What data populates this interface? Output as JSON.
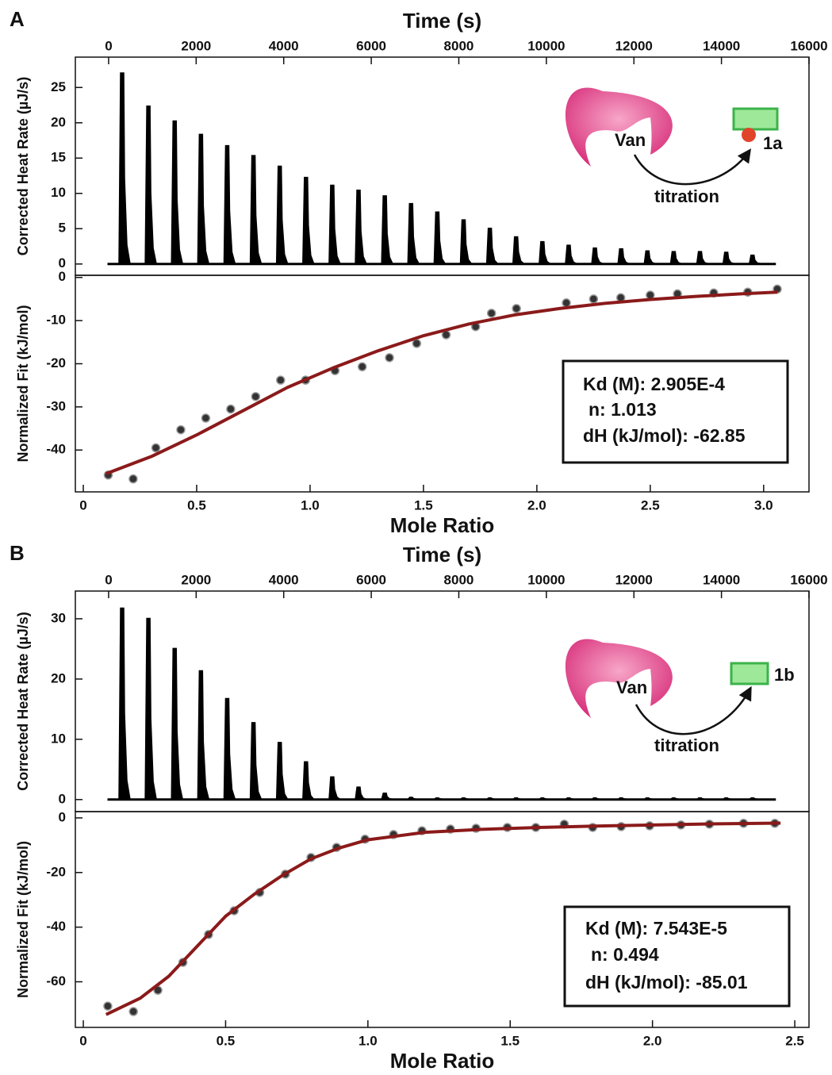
{
  "chart_data": [
    {
      "type": "peaks",
      "panel_label": "A",
      "xlabel": "Time (s)",
      "ylabel": "Corrected Heat Rate (µJ/s)",
      "xaxis": "top",
      "labels": [
        "Van",
        "titration",
        "1a"
      ],
      "x": [
        300,
        900,
        1500,
        2100,
        2700,
        3300,
        3900,
        4500,
        5100,
        5700,
        6300,
        6900,
        7500,
        8100,
        8700,
        9300,
        9900,
        10500,
        11100,
        11700,
        12300,
        12900,
        13500,
        14100,
        14700
      ],
      "values": [
        27,
        22.3,
        20.2,
        18.3,
        16.7,
        15.3,
        13.8,
        12.2,
        11.1,
        10.4,
        9.6,
        8.5,
        7.3,
        6.2,
        5,
        3.8,
        3.1,
        2.6,
        2.2,
        2.1,
        1.8,
        1.7,
        1.7,
        1.6,
        1.2
      ],
      "color": "#000000",
      "xlim": [
        -760,
        16000
      ],
      "xticks": [
        0,
        2000,
        4000,
        6000,
        8000,
        10000,
        12000,
        14000,
        16000
      ],
      "ylim": [
        -1.6,
        29.3
      ],
      "yticks": [
        0,
        5,
        10,
        15,
        20,
        25
      ]
    },
    {
      "type": "scatter",
      "xlabel": "Mole Ratio",
      "ylabel": "Normalized Fit (kJ/mol)",
      "xaxis": "bottom",
      "annotations": [
        "Kd (M): 2.905E-4",
        "n: 1.013",
        "dH (kJ/mol): -62.85"
      ],
      "series": [
        {
          "mode": "markers",
          "color": "#333333",
          "x": [
            0.11,
            0.22,
            0.32,
            0.43,
            0.54,
            0.65,
            0.76,
            0.87,
            0.98,
            1.11,
            1.23,
            1.35,
            1.47,
            1.6,
            1.73,
            1.8,
            1.91,
            2.13,
            2.25,
            2.37,
            2.5,
            2.62,
            2.78,
            2.93,
            3.06
          ],
          "values": [
            -45.8,
            -46.7,
            -39.5,
            -35.3,
            -32.6,
            -30.5,
            -27.6,
            -23.8,
            -23.8,
            -21.6,
            -20.7,
            -18.6,
            -15.3,
            -13.3,
            -11.4,
            -8.3,
            -7.2,
            -5.9,
            -5.0,
            -4.7,
            -4.1,
            -3.8,
            -3.6,
            -3.4,
            -2.7
          ]
        },
        {
          "mode": "line",
          "color": "#8b1a1a",
          "x": [
            0.1,
            0.3,
            0.5,
            0.7,
            0.9,
            1.1,
            1.3,
            1.5,
            1.7,
            1.9,
            2.1,
            2.3,
            2.5,
            2.7,
            2.9,
            3.06
          ],
          "values": [
            -45.5,
            -41.5,
            -36.5,
            -31,
            -25.5,
            -21,
            -17,
            -13.5,
            -10.8,
            -8.7,
            -7.2,
            -6,
            -5.1,
            -4.4,
            -3.8,
            -3.4
          ]
        }
      ],
      "xlim": [
        -0.035,
        3.2
      ],
      "xticks": [
        0,
        0.5,
        {
          "value": 1,
          "label": "1.0"
        },
        1.5,
        {
          "value": 2,
          "label": "2.0"
        },
        2.5,
        {
          "value": 3,
          "label": "3.0"
        }
      ],
      "ylim": [
        -49.7,
        0.5
      ],
      "yticks": [
        -40,
        -30,
        -20,
        -10,
        0
      ]
    },
    {
      "type": "peaks",
      "panel_label": "B",
      "xlabel": "Time (s)",
      "ylabel": "Corrected Heat Rate (µJ/s)",
      "xaxis": "top",
      "labels": [
        "Van",
        "titration",
        "1b"
      ],
      "x": [
        300,
        900,
        1500,
        2100,
        2700,
        3300,
        3900,
        4500,
        5100,
        5700,
        6300,
        6900,
        7500,
        8100,
        8700,
        9300,
        9900,
        10500,
        11100,
        11700,
        12300,
        12900,
        13500,
        14100,
        14700
      ],
      "values": [
        31.7,
        30,
        25,
        21.3,
        16.7,
        12.7,
        9.4,
        6.2,
        3.7,
        2.0,
        1.0,
        0.3,
        0.2,
        0.2,
        0.2,
        0.2,
        0.2,
        0.2,
        0.2,
        0.2,
        0.2,
        0.2,
        0.2,
        0.2,
        0.2
      ],
      "color": "#000000",
      "xlim": [
        -760,
        16000
      ],
      "xticks": [
        0,
        2000,
        4000,
        6000,
        8000,
        10000,
        12000,
        14000,
        16000
      ],
      "ylim": [
        -2,
        34.6
      ],
      "yticks": [
        0,
        10,
        20,
        30
      ]
    },
    {
      "type": "scatter",
      "xlabel": "Mole Ratio",
      "ylabel": "Normalized Fit (kJ/mol)",
      "xaxis": "bottom",
      "annotations": [
        "Kd (M): 7.543E-5",
        "n: 0.494",
        "dH (kJ/mol): -85.01"
      ],
      "series": [
        {
          "mode": "markers",
          "color": "#333333",
          "x": [
            0.086,
            0.176,
            0.262,
            0.35,
            0.44,
            0.53,
            0.62,
            0.71,
            0.8,
            0.89,
            0.99,
            1.09,
            1.19,
            1.29,
            1.38,
            1.49,
            1.59,
            1.69,
            1.79,
            1.89,
            1.99,
            2.1,
            2.2,
            2.32,
            2.43
          ],
          "values": [
            -68.9,
            -70.9,
            -63.1,
            -52.9,
            -42.7,
            -34.0,
            -27.3,
            -20.6,
            -14.5,
            -10.8,
            -7.8,
            -6.1,
            -4.7,
            -4.1,
            -3.8,
            -3.5,
            -3.5,
            -2.3,
            -3.5,
            -3.2,
            -2.9,
            -2.6,
            -2.3,
            -2.0,
            -2.0
          ]
        },
        {
          "mode": "line",
          "color": "#8b1a1a",
          "x": [
            0.08,
            0.2,
            0.3,
            0.4,
            0.5,
            0.6,
            0.7,
            0.8,
            0.9,
            1.0,
            1.2,
            1.4,
            1.6,
            1.8,
            2.0,
            2.2,
            2.45
          ],
          "values": [
            -72,
            -66,
            -58,
            -47,
            -36,
            -28,
            -21,
            -15,
            -11,
            -8,
            -5.3,
            -4.2,
            -3.5,
            -3,
            -2.6,
            -2.2,
            -1.9
          ]
        }
      ],
      "xlim": [
        -0.028,
        2.55
      ],
      "xticks": [
        0,
        0.5,
        {
          "value": 1,
          "label": "1.0"
        },
        1.5,
        {
          "value": 2,
          "label": "2.0"
        },
        2.5
      ],
      "ylim": [
        -76.7,
        2.3
      ],
      "yticks": [
        -60,
        -40,
        -20,
        0
      ]
    }
  ]
}
